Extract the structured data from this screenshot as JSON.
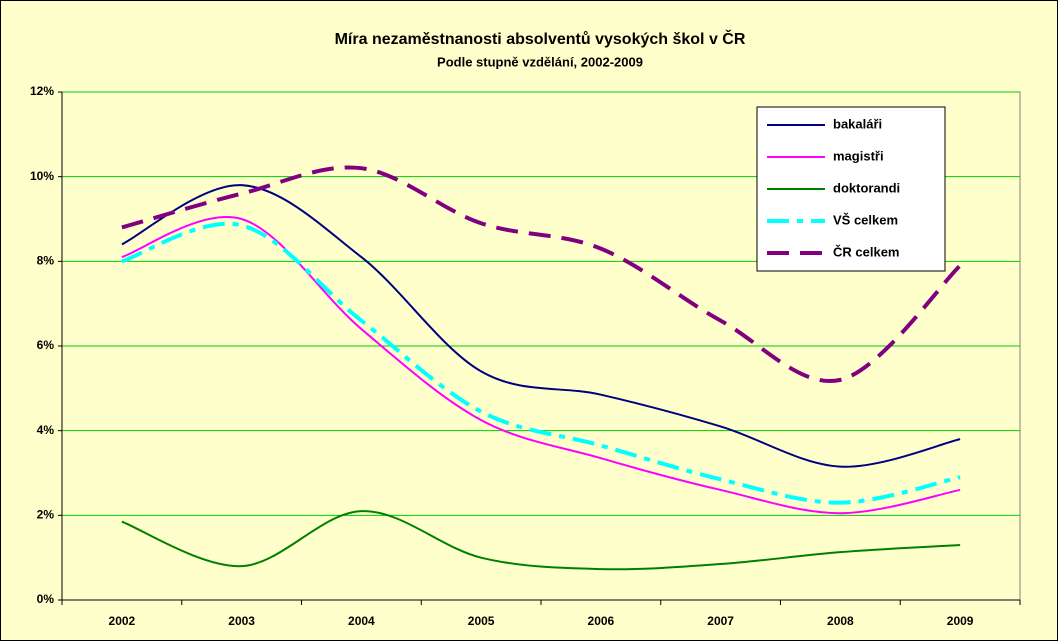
{
  "chart_data": {
    "type": "line",
    "title": "Míra nezaměstnanosti absolventů vysokých škol v ČR",
    "subtitle": "Podle stupně vzdělání, 2002-2009",
    "categories": [
      "2002",
      "2003",
      "2004",
      "2005",
      "2006",
      "2007",
      "2008",
      "2009"
    ],
    "series": [
      {
        "name": "bakaláři",
        "color": "#000080",
        "line_style": "solid",
        "values": [
          8.4,
          9.8,
          8.1,
          5.4,
          4.85,
          4.1,
          3.15,
          3.8
        ]
      },
      {
        "name": "magistři",
        "color": "#ff00ff",
        "line_style": "solid",
        "values": [
          8.1,
          9.0,
          6.4,
          4.25,
          3.35,
          2.6,
          2.05,
          2.6
        ]
      },
      {
        "name": "doktorandi",
        "color": "#008000",
        "line_style": "solid",
        "values": [
          1.85,
          0.8,
          2.1,
          1.0,
          0.73,
          0.85,
          1.13,
          1.3
        ]
      },
      {
        "name": "VŠ celkem",
        "color": "#00ffff",
        "line_style": "dashdot",
        "values": [
          8.0,
          8.85,
          6.6,
          4.45,
          3.65,
          2.85,
          2.3,
          2.9
        ]
      },
      {
        "name": "ČR celkem",
        "color": "#800080",
        "line_style": "dashed",
        "values": [
          8.8,
          9.6,
          10.2,
          8.9,
          8.3,
          6.6,
          5.2,
          7.9
        ]
      }
    ],
    "ylim": [
      0,
      12
    ],
    "yticks": [
      {
        "value": 0,
        "label": "0%"
      },
      {
        "value": 2,
        "label": "2%"
      },
      {
        "value": 4,
        "label": "4%"
      },
      {
        "value": 6,
        "label": "6%"
      },
      {
        "value": 8,
        "label": "8%"
      },
      {
        "value": 10,
        "label": "10%"
      },
      {
        "value": 12,
        "label": "12%"
      }
    ],
    "grid": true,
    "legend": "upper right"
  }
}
